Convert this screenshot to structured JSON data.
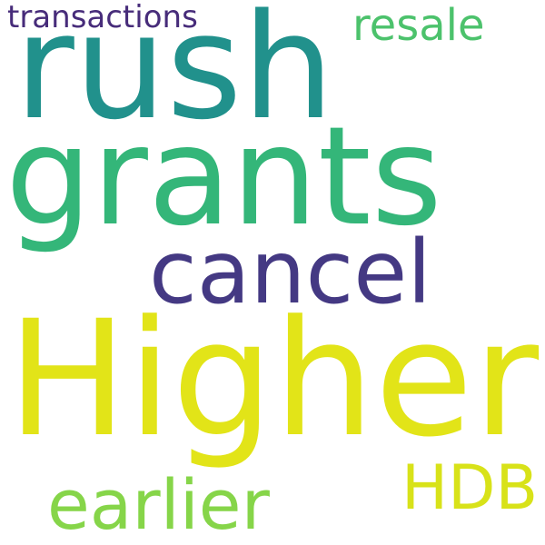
{
  "words": [
    {
      "text": "transactions",
      "color": "#472c7a"
    },
    {
      "text": "rush",
      "color": "#21918c"
    },
    {
      "text": "resale",
      "color": "#4cc26c"
    },
    {
      "text": "grants",
      "color": "#34b679"
    },
    {
      "text": "cancel",
      "color": "#443983"
    },
    {
      "text": "Higher",
      "color": "#e2e418"
    },
    {
      "text": "HDB",
      "color": "#d8e219"
    },
    {
      "text": "earlier",
      "color": "#86d549"
    }
  ]
}
